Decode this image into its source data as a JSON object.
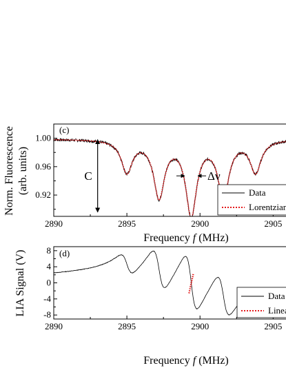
{
  "chart_data": [
    {
      "panel": "(c)",
      "type": "line",
      "xlabel": "Frequency f (MHz)",
      "xlabel_parts": [
        "Frequency ",
        "f",
        " (MHz)"
      ],
      "ylabel_line1": "Norm. Fluorescence",
      "ylabel_line2": "(arb. units)",
      "xlim": [
        2890,
        2908
      ],
      "ylim": [
        0.89,
        1.02
      ],
      "x_ticks": [
        "2890",
        "2895",
        "2900",
        "2905"
      ],
      "y_ticks": [
        "1.00",
        "0.96",
        "0.92"
      ],
      "baseline": 0.999,
      "dips": [
        {
          "x": 2895.0,
          "y": 0.954
        },
        {
          "x": 2897.2,
          "y": 0.92
        },
        {
          "x": 2899.4,
          "y": 0.895
        },
        {
          "x": 2901.6,
          "y": 0.919
        },
        {
          "x": 2903.8,
          "y": 0.954
        }
      ],
      "linewidth_mhz": 0.9,
      "annotations": {
        "contrast": "C",
        "width": "Δν",
        "contrast_x": 2893.0
      },
      "legend": [
        "Data",
        "Lorentzian"
      ],
      "legend_placement": "bottom-right",
      "series": [
        {
          "name": "Data",
          "color": "#000000",
          "style": "solid"
        },
        {
          "name": "Lorentzian",
          "color": "#e31a1c",
          "style": "dotted"
        }
      ]
    },
    {
      "panel": "(d)",
      "type": "line",
      "xlabel": "Frequency f (MHz)",
      "xlabel_parts": [
        "Frequency ",
        "f",
        " (MHz)"
      ],
      "ylabel": "LIA Signal (V)",
      "xlim": [
        2890,
        2908
      ],
      "ylim": [
        -9,
        9
      ],
      "x_ticks": [
        "2890",
        "2895",
        "2900",
        "2905"
      ],
      "y_ticks": [
        "8",
        "4",
        "0",
        "-4",
        "-8"
      ],
      "features": [
        {
          "x": 2895.0,
          "amp": 2.8
        },
        {
          "x": 2897.2,
          "amp": 5.4
        },
        {
          "x": 2899.4,
          "amp": 7.4
        },
        {
          "x": 2901.6,
          "amp": 5.5
        },
        {
          "x": 2903.8,
          "amp": 2.9
        }
      ],
      "linear_fit": {
        "x_start": 2899.25,
        "x_end": 2899.55,
        "y_start": -2.6,
        "y_end": 2.4
      },
      "legend": [
        "Data",
        "Linear"
      ],
      "legend_placement": "bottom-right",
      "series": [
        {
          "name": "Data",
          "color": "#000000",
          "style": "solid"
        },
        {
          "name": "Linear",
          "color": "#e31a1c",
          "style": "dotted"
        }
      ]
    }
  ]
}
